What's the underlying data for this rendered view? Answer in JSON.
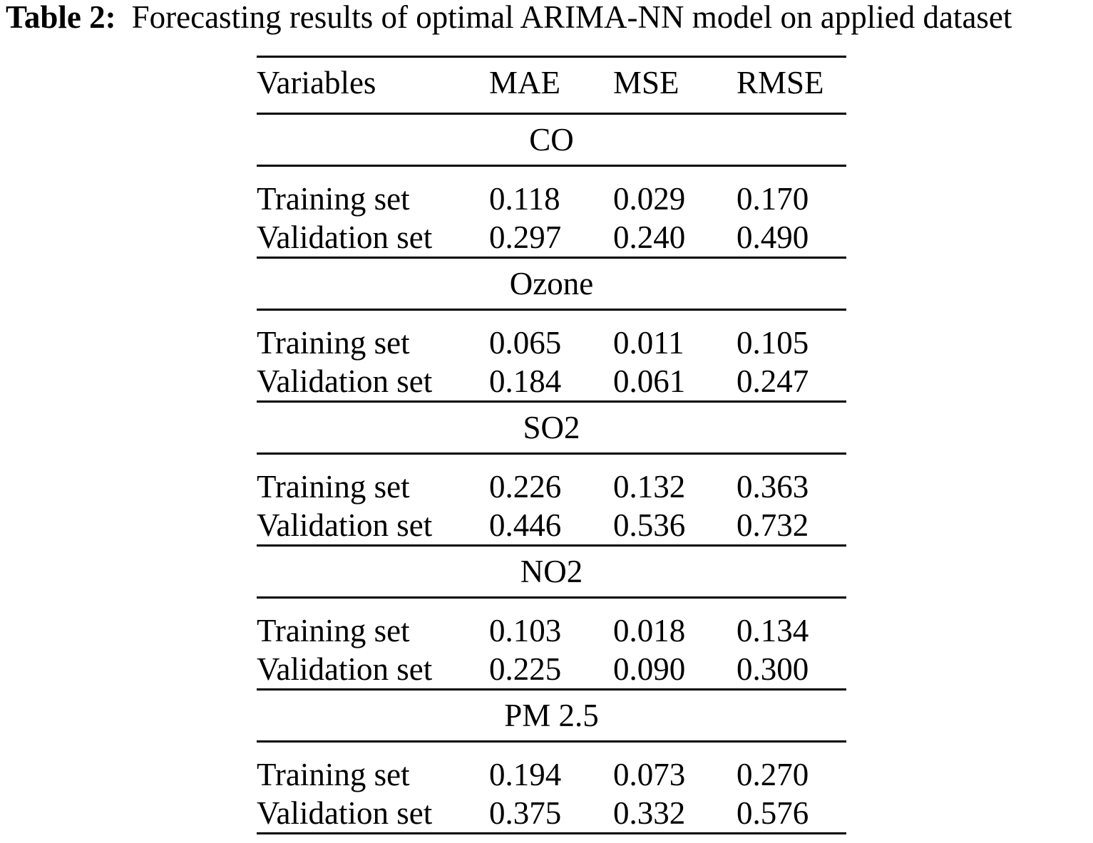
{
  "caption": {
    "label": "Table 2:",
    "text": "Forecasting results of optimal ARIMA-NN model on applied dataset"
  },
  "table": {
    "headers": [
      "Variables",
      "MAE",
      "MSE",
      "RMSE"
    ],
    "groups": [
      {
        "name": "CO",
        "rows": [
          {
            "label": "Training set",
            "mae": "0.118",
            "mse": "0.029",
            "rmse": "0.170"
          },
          {
            "label": "Validation set",
            "mae": "0.297",
            "mse": "0.240",
            "rmse": "0.490"
          }
        ]
      },
      {
        "name": "Ozone",
        "rows": [
          {
            "label": "Training set",
            "mae": "0.065",
            "mse": "0.011",
            "rmse": "0.105"
          },
          {
            "label": "Validation set",
            "mae": "0.184",
            "mse": "0.061",
            "rmse": "0.247"
          }
        ]
      },
      {
        "name": "SO2",
        "rows": [
          {
            "label": "Training set",
            "mae": "0.226",
            "mse": "0.132",
            "rmse": "0.363"
          },
          {
            "label": "Validation set",
            "mae": "0.446",
            "mse": "0.536",
            "rmse": "0.732"
          }
        ]
      },
      {
        "name": "NO2",
        "rows": [
          {
            "label": "Training set",
            "mae": "0.103",
            "mse": "0.018",
            "rmse": "0.134"
          },
          {
            "label": "Validation set",
            "mae": "0.225",
            "mse": "0.090",
            "rmse": "0.300"
          }
        ]
      },
      {
        "name": "PM 2.5",
        "rows": [
          {
            "label": "Training set",
            "mae": "0.194",
            "mse": "0.073",
            "rmse": "0.270"
          },
          {
            "label": "Validation set",
            "mae": "0.375",
            "mse": "0.332",
            "rmse": "0.576"
          }
        ]
      }
    ]
  }
}
